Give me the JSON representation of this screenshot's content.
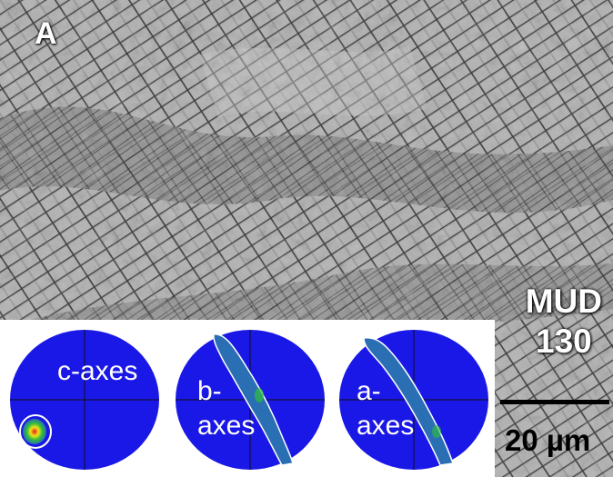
{
  "panel_label": "A",
  "sample_label_line1": "MUD",
  "sample_label_line2": "130",
  "pole_figures": [
    {
      "label_line1": "c-axes",
      "label_line2": ""
    },
    {
      "label_line1": "b-",
      "label_line2": "axes"
    },
    {
      "label_line1": "a-",
      "label_line2": "axes"
    }
  ],
  "scale_bar_label": "20 µm",
  "colors": {
    "pole_figure_bg": "#1a18e6",
    "density_low": "#2a6fb3",
    "density_high": "#e11b1b"
  }
}
